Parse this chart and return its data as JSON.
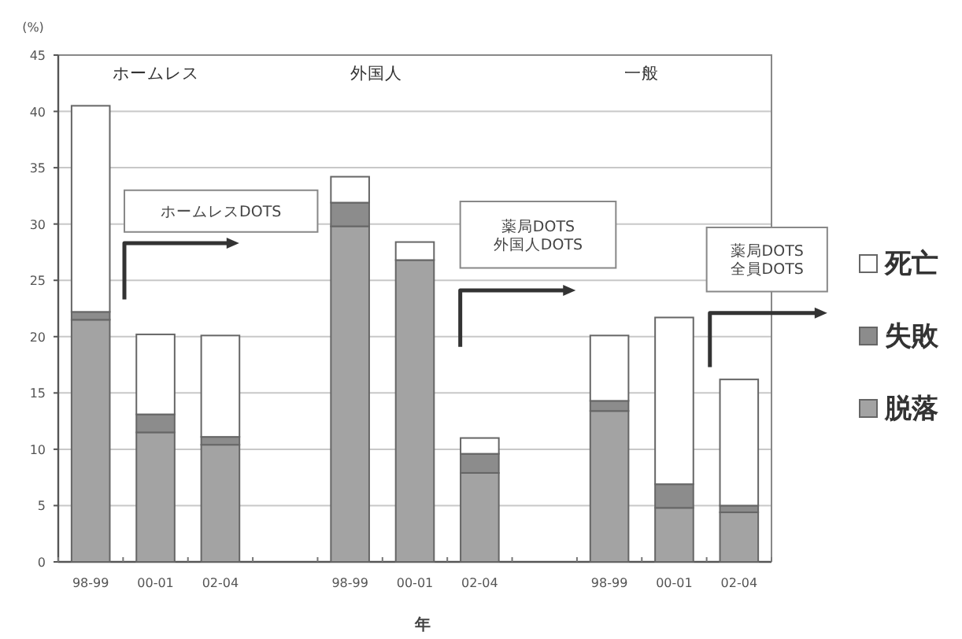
{
  "chart_data": {
    "type": "bar",
    "stacked": true,
    "xlabel": "年",
    "ylabel": "(%)",
    "categories": [
      "98-99",
      "00-01",
      "02-04",
      null,
      "98-99",
      "00-01",
      "02-04",
      null,
      "98-99",
      "00-01",
      "02-04"
    ],
    "series": [
      {
        "name": "脱落",
        "color": "#a3a3a3",
        "values": [
          21.5,
          11.5,
          10.4,
          null,
          29.8,
          26.8,
          7.9,
          null,
          13.4,
          4.8,
          4.4
        ]
      },
      {
        "name": "失敗",
        "color": "#8c8c8c",
        "values": [
          0.7,
          1.6,
          0.7,
          null,
          2.1,
          0,
          1.7,
          null,
          0.9,
          2.1,
          0.6
        ]
      },
      {
        "name": "死亡",
        "color": "#ffffff",
        "values": [
          18.3,
          7.1,
          9.0,
          null,
          2.3,
          1.6,
          1.4,
          null,
          5.8,
          14.8,
          11.2
        ]
      }
    ],
    "ylim": [
      0,
      45
    ],
    "yticks": [
      0,
      5,
      10,
      15,
      20,
      25,
      30,
      35,
      40,
      45
    ],
    "grid": "y",
    "legend": "right",
    "annotations": [
      "ホームレス",
      "外国人",
      "一般",
      "ホームレスDOTS",
      "薬局DOTS\n外国人DOTS",
      "薬局DOTS\n全員DOTS"
    ]
  }
}
